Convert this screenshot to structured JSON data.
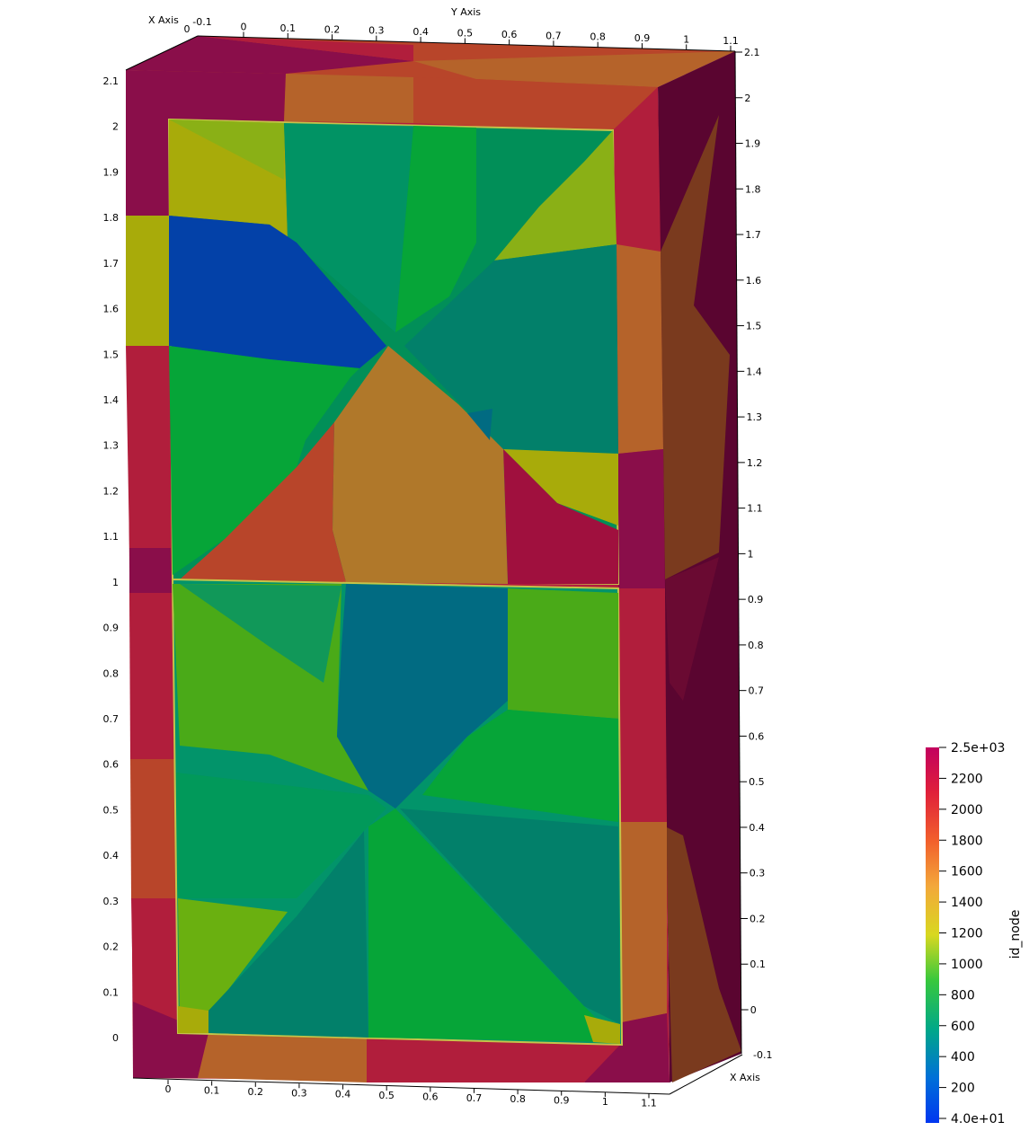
{
  "axes": {
    "x_title": "X Axis",
    "y_title": "Y Axis",
    "x_top_ticks": [
      "0",
      "-0.1"
    ],
    "x_right_ticks": [
      "-0.1"
    ],
    "y_top_ticks": [
      "0",
      "0.1",
      "0.2",
      "0.3",
      "0.4",
      "0.5",
      "0.6",
      "0.7",
      "0.8",
      "0.9",
      "1",
      "1.1"
    ],
    "y_bottom_ticks": [
      "0",
      "0.1",
      "0.2",
      "0.3",
      "0.4",
      "0.5",
      "0.6",
      "0.7",
      "0.8",
      "0.9",
      "1",
      "1.1"
    ],
    "z_left_ticks": [
      "2.1",
      "2",
      "1.9",
      "1.8",
      "1.7",
      "1.6",
      "1.5",
      "1.4",
      "1.3",
      "1.2",
      "1.1",
      "1",
      "0.9",
      "0.8",
      "0.7",
      "0.6",
      "0.5",
      "0.4",
      "0.3",
      "0.2",
      "0.1",
      "0"
    ],
    "z_right_ticks": [
      "2.1",
      "2",
      "1.9",
      "1.8",
      "1.7",
      "1.6",
      "1.5",
      "1.4",
      "1.3",
      "1.2",
      "1.1",
      "1",
      "0.9",
      "0.8",
      "0.7",
      "0.6",
      "0.5",
      "0.4",
      "0.3",
      "0.2",
      "0.1",
      "0"
    ]
  },
  "colorbar": {
    "title": "id_node",
    "labels": [
      "2.5e+03",
      "2200",
      "2000",
      "1800",
      "1600",
      "1400",
      "1200",
      "1000",
      "800",
      "600",
      "400",
      "200",
      "4.0e+01"
    ],
    "colors": [
      "#c2005e",
      "#e0203a",
      "#f2602c",
      "#f3a83a",
      "#d8d820",
      "#38c83c",
      "#00a888",
      "#0070d8",
      "#0036f0"
    ]
  },
  "palette": {
    "magenta": "#8a0e4a",
    "crimson": "#b11e3c",
    "rust": "#b8452a",
    "brown": "#b0782a",
    "orange_brown": "#b5632a",
    "olive": "#a8ab0a",
    "yellow_green": "#8ab016",
    "green": "#06a538",
    "teal_green": "#018f58",
    "teal": "#02806a",
    "dark_teal": "#016b82",
    "blue": "#0341a8",
    "dark_side": "#5a0530",
    "mid_green": "#4aaa18"
  }
}
